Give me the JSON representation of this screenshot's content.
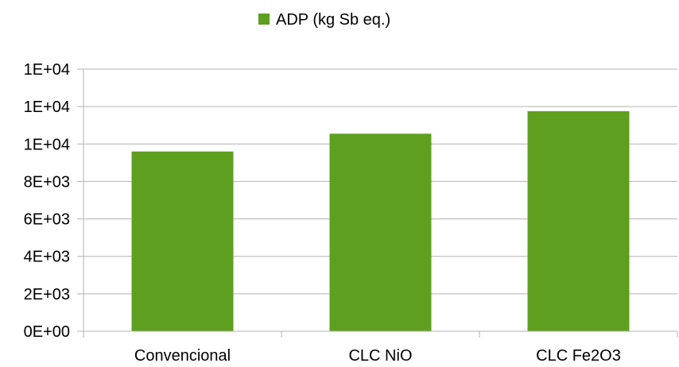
{
  "chart_data": {
    "type": "bar",
    "categories": [
      "Convencional",
      "CLC NiO",
      "CLC Fe2O3"
    ],
    "series": [
      {
        "name": "ADP (kg Sb eq.)",
        "values": [
          9600,
          10550,
          11750
        ],
        "color": "#5f9f1f"
      }
    ],
    "y_tick_labels": [
      "0E+00",
      "2E+03",
      "4E+03",
      "6E+03",
      "8E+03",
      "1E+04",
      "1E+04",
      "1E+04"
    ],
    "ylim": [
      0,
      14000
    ],
    "y_tick_step": 2000,
    "grid": true,
    "legend_position": "top-center",
    "title": "",
    "xlabel": "",
    "ylabel": ""
  }
}
